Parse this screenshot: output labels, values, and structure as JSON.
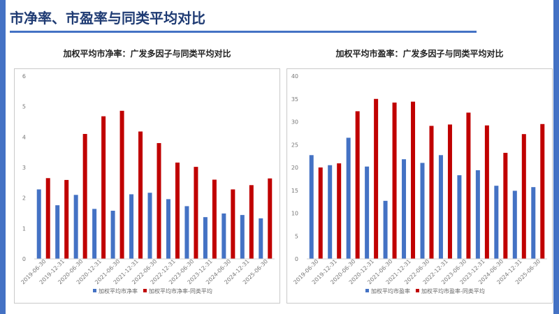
{
  "page": {
    "title": "市净率、市盈率与同类平均对比"
  },
  "colors": {
    "series1": "#4472c4",
    "series2": "#c00000",
    "accent": "#4472c4",
    "title": "#1f3b73"
  },
  "chart_data": [
    {
      "type": "bar",
      "title": "加权平均市净率：广发多因子与同类平均对比",
      "categories": [
        "2019-06-30",
        "2019-12-31",
        "2020-06-30",
        "2020-12-31",
        "2021-06-30",
        "2021-12-31",
        "2022-06-30",
        "2022-12-31",
        "2023-06-30",
        "2023-12-31",
        "2024-06-30",
        "2024-12-31",
        "2025-06-30"
      ],
      "series": [
        {
          "name": "加权平均市净率",
          "values": [
            2.28,
            1.76,
            2.1,
            1.64,
            1.58,
            2.12,
            2.17,
            1.96,
            1.73,
            1.37,
            1.49,
            1.44,
            1.33
          ]
        },
        {
          "name": "加权平均市净率-同类平均",
          "values": [
            2.65,
            2.59,
            4.1,
            4.68,
            4.86,
            4.18,
            3.8,
            3.16,
            3.02,
            2.6,
            2.28,
            2.42,
            2.64
          ]
        }
      ],
      "ylim": [
        0,
        6
      ],
      "yticks": [
        0,
        1,
        2,
        3,
        4,
        5,
        6
      ]
    },
    {
      "type": "bar",
      "title": "加权平均市盈率：广发多因子与同类平均对比",
      "categories": [
        "2019-06-30",
        "2019-12-31",
        "2020-06-30",
        "2020-12-31",
        "2021-06-30",
        "2021-12-31",
        "2022-06-30",
        "2022-12-31",
        "2023-06-30",
        "2023-12-31",
        "2024-06-30",
        "2024-12-31",
        "2025-06-30"
      ],
      "series": [
        {
          "name": "加权平均市盈率",
          "values": [
            22.7,
            20.5,
            26.5,
            20.2,
            12.7,
            21.8,
            21.0,
            22.7,
            18.3,
            19.4,
            16.0,
            14.9,
            15.7
          ]
        },
        {
          "name": "加权平均市盈率-同类平均",
          "values": [
            20.0,
            20.9,
            32.3,
            35.0,
            34.2,
            34.4,
            29.1,
            29.4,
            32.0,
            29.2,
            23.2,
            27.3,
            29.5
          ]
        }
      ],
      "ylim": [
        0,
        40
      ],
      "yticks": [
        0,
        5,
        10,
        15,
        20,
        25,
        30,
        35,
        40
      ]
    }
  ]
}
